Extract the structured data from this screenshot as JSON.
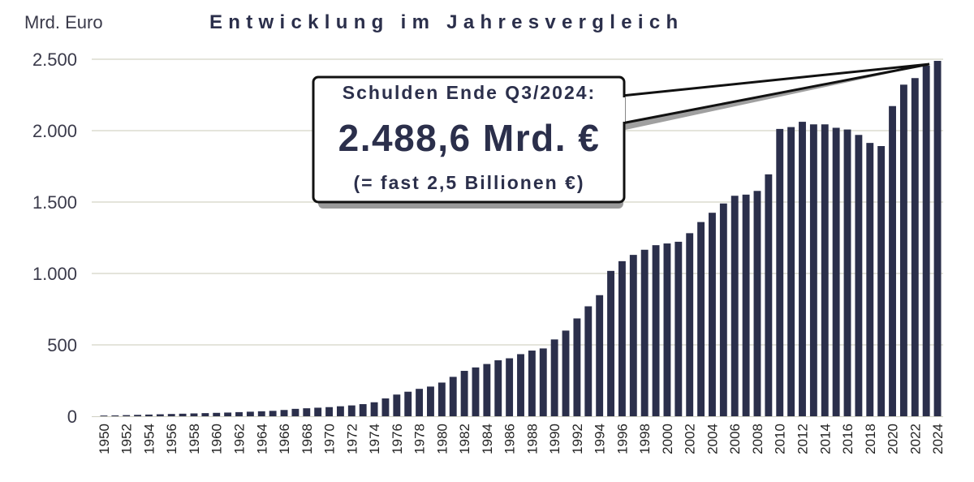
{
  "chart_data": {
    "type": "bar",
    "title": "Entwicklung im Jahresvergleich",
    "ylabel": "Mrd. Euro",
    "xlabel": "",
    "ylim": [
      0,
      2500
    ],
    "yticks": [
      0,
      500,
      1000,
      1500,
      2000,
      2500
    ],
    "ytick_labels": [
      "0",
      "500",
      "1.000",
      "1.500",
      "2.000",
      "2.500"
    ],
    "grid": true,
    "categories": [
      "1950",
      "1951",
      "1952",
      "1953",
      "1954",
      "1955",
      "1956",
      "1957",
      "1958",
      "1959",
      "1960",
      "1961",
      "1962",
      "1963",
      "1964",
      "1965",
      "1966",
      "1967",
      "1968",
      "1969",
      "1970",
      "1971",
      "1972",
      "1973",
      "1974",
      "1975",
      "1976",
      "1977",
      "1978",
      "1979",
      "1980",
      "1981",
      "1982",
      "1983",
      "1984",
      "1985",
      "1986",
      "1987",
      "1988",
      "1989",
      "1990",
      "1991",
      "1992",
      "1993",
      "1994",
      "1995",
      "1996",
      "1997",
      "1998",
      "1999",
      "2000",
      "2001",
      "2002",
      "2003",
      "2004",
      "2005",
      "2006",
      "2007",
      "2008",
      "2009",
      "2010",
      "2011",
      "2012",
      "2013",
      "2014",
      "2015",
      "2016",
      "2017",
      "2018",
      "2019",
      "2020",
      "2021",
      "2022",
      "2023",
      "2024"
    ],
    "x_label_every": 2,
    "values": [
      5,
      6,
      8,
      10,
      12,
      14,
      16,
      18,
      20,
      22,
      24,
      26,
      29,
      32,
      35,
      38,
      44,
      52,
      56,
      60,
      64,
      70,
      76,
      85,
      98,
      125,
      152,
      172,
      192,
      208,
      236,
      276,
      318,
      342,
      366,
      392,
      406,
      435,
      460,
      475,
      538,
      600,
      685,
      770,
      848,
      1018,
      1086,
      1130,
      1166,
      1198,
      1210,
      1222,
      1282,
      1360,
      1425,
      1490,
      1544,
      1552,
      1578,
      1694,
      2012,
      2025,
      2062,
      2044,
      2044,
      2020,
      2008,
      1970,
      1914,
      1892,
      2172,
      2322,
      2368,
      2455,
      2488.6
    ],
    "bar_color": "#2b2f4b",
    "annotation": {
      "line1": "Schulden Ende Q3/2024:",
      "line2": "2.488,6 Mrd. €",
      "line3": "(= fast 2,5 Billionen €)"
    }
  }
}
